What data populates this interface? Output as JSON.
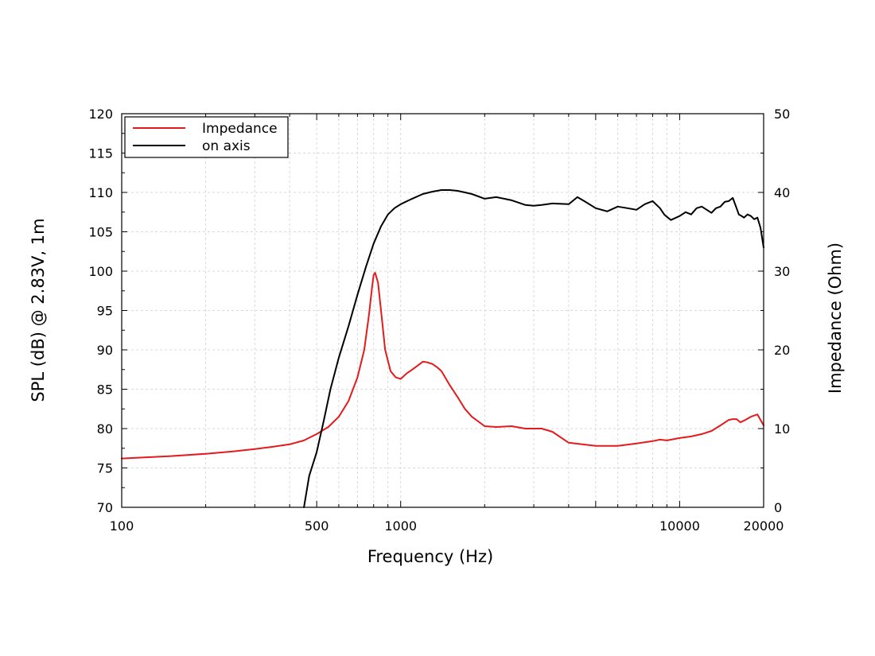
{
  "chart_data": {
    "type": "line",
    "title": "",
    "xlabel": "Frequency (Hz)",
    "ylabel": "SPL (dB) @ 2.83V, 1m",
    "y2label": "Impedance (Ohm)",
    "xscale": "log",
    "xlim": [
      100,
      20000
    ],
    "ylim": [
      70,
      120
    ],
    "y2lim": [
      0,
      50
    ],
    "grid": true,
    "legend_position": "top-left",
    "x_ticks": [
      {
        "value": 100,
        "label": "100"
      },
      {
        "value": 500,
        "label": "500"
      },
      {
        "value": 1000,
        "label": "1000"
      },
      {
        "value": 10000,
        "label": "10000"
      },
      {
        "value": 20000,
        "label": "20000"
      }
    ],
    "y_ticks": [
      {
        "value": 70,
        "label": "70"
      },
      {
        "value": 75,
        "label": "75"
      },
      {
        "value": 80,
        "label": "80"
      },
      {
        "value": 85,
        "label": "85"
      },
      {
        "value": 90,
        "label": "90"
      },
      {
        "value": 95,
        "label": "95"
      },
      {
        "value": 100,
        "label": "100"
      },
      {
        "value": 105,
        "label": "105"
      },
      {
        "value": 110,
        "label": "110"
      },
      {
        "value": 115,
        "label": "115"
      },
      {
        "value": 120,
        "label": "120"
      }
    ],
    "y2_ticks": [
      {
        "value": 0,
        "label": "0"
      },
      {
        "value": 10,
        "label": "10"
      },
      {
        "value": 20,
        "label": "20"
      },
      {
        "value": 30,
        "label": "30"
      },
      {
        "value": 40,
        "label": "40"
      },
      {
        "value": 50,
        "label": "50"
      }
    ],
    "series": [
      {
        "name": "Impedance",
        "axis": "right",
        "color": "#e41a1c",
        "x": [
          100,
          150,
          200,
          250,
          300,
          350,
          400,
          450,
          500,
          550,
          600,
          650,
          700,
          740,
          770,
          790,
          800,
          810,
          830,
          850,
          880,
          920,
          960,
          1000,
          1050,
          1100,
          1150,
          1200,
          1250,
          1300,
          1350,
          1400,
          1500,
          1600,
          1700,
          1800,
          2000,
          2200,
          2500,
          2800,
          3000,
          3200,
          3500,
          4000,
          5000,
          6000,
          7000,
          8000,
          8500,
          9000,
          10000,
          11000,
          12000,
          13000,
          14000,
          15000,
          15500,
          16000,
          16500,
          17000,
          18000,
          19000,
          20000
        ],
        "values": [
          6.2,
          6.5,
          6.8,
          7.1,
          7.4,
          7.7,
          8.0,
          8.5,
          9.3,
          10.2,
          11.5,
          13.5,
          16.5,
          20.0,
          24.5,
          28.0,
          29.5,
          29.8,
          28.5,
          25.0,
          20.0,
          17.3,
          16.5,
          16.3,
          17.0,
          17.5,
          18.0,
          18.5,
          18.4,
          18.2,
          17.8,
          17.3,
          15.5,
          14.0,
          12.5,
          11.5,
          10.3,
          10.2,
          10.3,
          10.0,
          10.0,
          10.0,
          9.6,
          8.2,
          7.8,
          7.8,
          8.1,
          8.4,
          8.6,
          8.5,
          8.8,
          9.0,
          9.3,
          9.7,
          10.4,
          11.1,
          11.2,
          11.2,
          10.8,
          11.0,
          11.5,
          11.8,
          10.4
        ]
      },
      {
        "name": "on axis",
        "axis": "left",
        "color": "#000000",
        "x": [
          450,
          470,
          500,
          530,
          560,
          600,
          650,
          700,
          750,
          800,
          850,
          900,
          950,
          1000,
          1100,
          1200,
          1300,
          1400,
          1500,
          1600,
          1700,
          1800,
          2000,
          2200,
          2500,
          2800,
          3000,
          3200,
          3500,
          4000,
          4300,
          4600,
          5000,
          5500,
          6000,
          6500,
          7000,
          7500,
          8000,
          8500,
          8800,
          9000,
          9300,
          10000,
          10500,
          11000,
          11500,
          12000,
          12500,
          13000,
          13500,
          14000,
          14500,
          15000,
          15500,
          16000,
          16300,
          16700,
          17000,
          17500,
          18000,
          18500,
          19000,
          19500,
          20000
        ],
        "values": [
          70.0,
          74.0,
          77.0,
          81.0,
          85.0,
          89.0,
          93.0,
          97.0,
          100.5,
          103.5,
          105.7,
          107.2,
          108.0,
          108.5,
          109.2,
          109.8,
          110.1,
          110.3,
          110.3,
          110.2,
          110.0,
          109.8,
          109.2,
          109.4,
          109.0,
          108.4,
          108.3,
          108.4,
          108.6,
          108.5,
          109.4,
          108.8,
          108.0,
          107.6,
          108.2,
          108.0,
          107.8,
          108.5,
          108.9,
          108.0,
          107.2,
          106.9,
          106.5,
          107.0,
          107.5,
          107.2,
          108.0,
          108.2,
          107.8,
          107.4,
          108.0,
          108.2,
          108.8,
          108.9,
          109.3,
          108.0,
          107.2,
          107.0,
          106.8,
          107.2,
          107.0,
          106.6,
          106.8,
          105.5,
          103.0
        ]
      }
    ]
  }
}
